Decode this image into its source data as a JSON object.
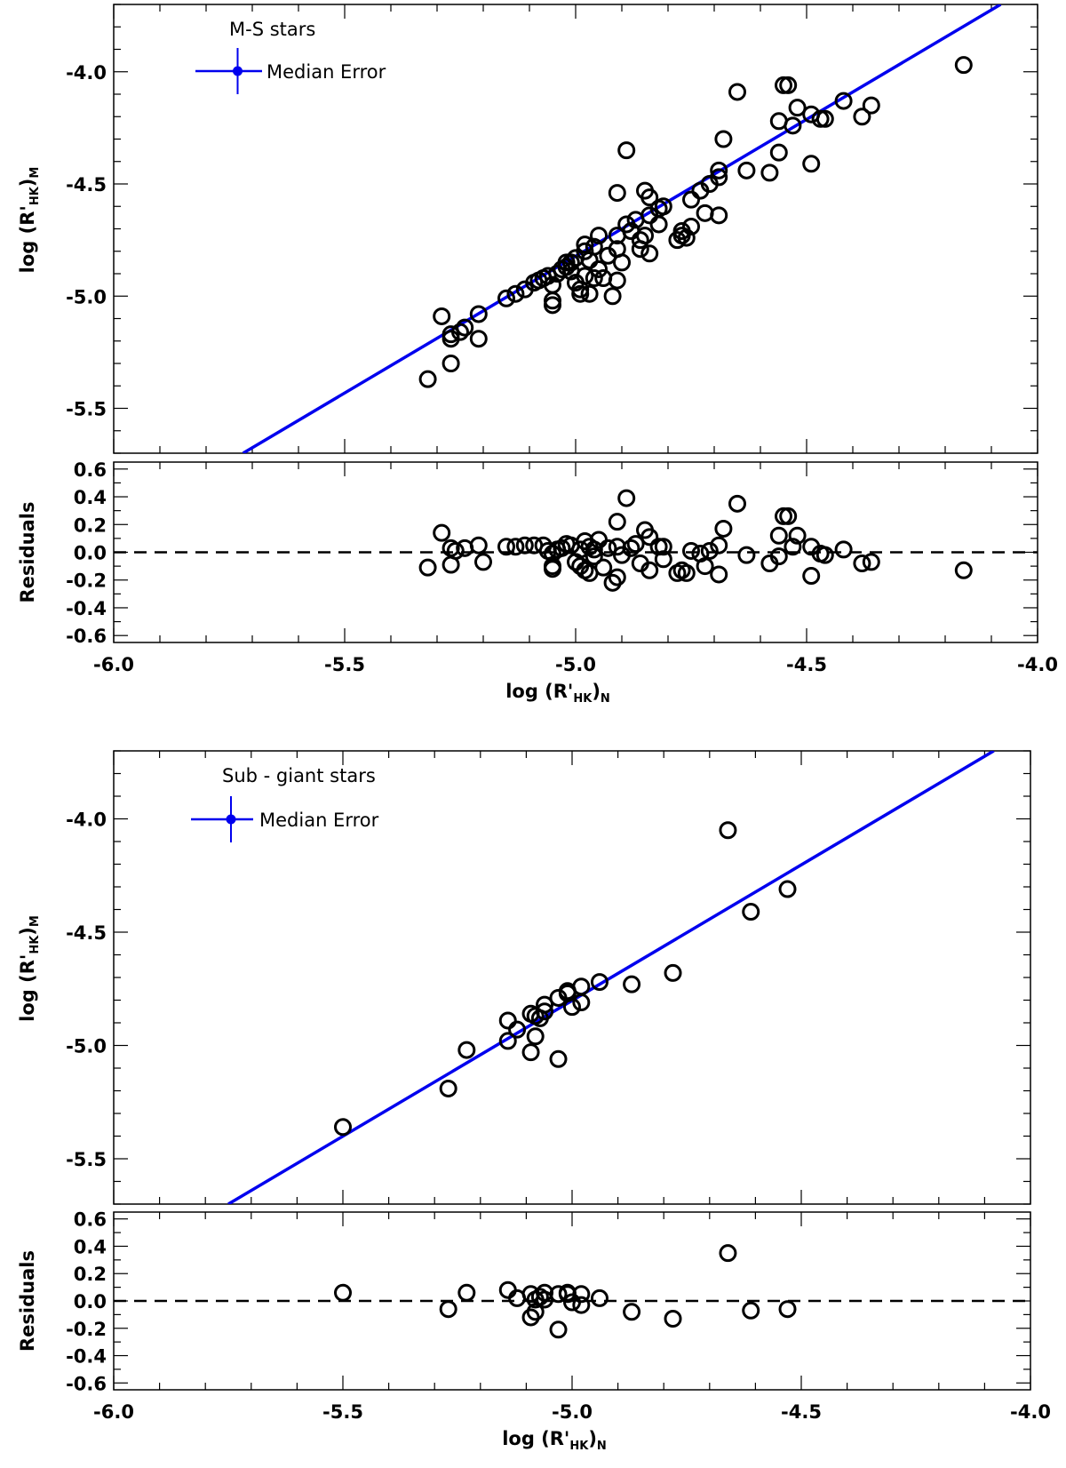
{
  "colors": {
    "fit_line": "#0000ee",
    "points": "#000000",
    "dashed_zero": "#000000",
    "frame": "#000000"
  },
  "chart_data": [
    {
      "type": "scatter",
      "panel": "main",
      "legend_title": "M-S stars",
      "legend_label": "Median Error",
      "legend_position": "top-left",
      "xlabel": "",
      "ylabel": "log (R'HK)M",
      "ylabel_main": "log (R'",
      "ylabel_sub1": "HK",
      "ylabel_close": ")",
      "ylabel_sub2": "M",
      "xlim": [
        -6.0,
        -4.0
      ],
      "ylim": [
        -5.7,
        -3.7
      ],
      "x_ticks": [
        -6.0,
        -5.5,
        -5.0,
        -4.5,
        -4.0
      ],
      "y_ticks": [
        -4.0,
        -4.5,
        -5.0,
        -5.5
      ],
      "y_tick_labels": [
        "-4.0",
        "-4.5",
        "-5.0",
        "-5.5"
      ],
      "fit_line": {
        "x": [
          -5.72,
          -4.08
        ],
        "y": [
          -5.7,
          -3.7
        ]
      },
      "points": [
        [
          -5.32,
          -5.37
        ],
        [
          -5.29,
          -5.09
        ],
        [
          -5.27,
          -5.17
        ],
        [
          -5.27,
          -5.19
        ],
        [
          -5.27,
          -5.3
        ],
        [
          -5.25,
          -5.16
        ],
        [
          -5.24,
          -5.14
        ],
        [
          -5.21,
          -5.08
        ],
        [
          -5.21,
          -5.19
        ],
        [
          -5.15,
          -5.01
        ],
        [
          -5.13,
          -4.99
        ],
        [
          -5.11,
          -4.97
        ],
        [
          -5.09,
          -4.94
        ],
        [
          -5.08,
          -4.93
        ],
        [
          -5.07,
          -4.92
        ],
        [
          -5.06,
          -4.91
        ],
        [
          -5.05,
          -4.95
        ],
        [
          -5.05,
          -5.02
        ],
        [
          -5.05,
          -5.04
        ],
        [
          -5.04,
          -4.9
        ],
        [
          -5.03,
          -4.88
        ],
        [
          -5.02,
          -4.85
        ],
        [
          -5.02,
          -4.87
        ],
        [
          -5.01,
          -4.85
        ],
        [
          -5.01,
          -4.89
        ],
        [
          -5.0,
          -4.83
        ],
        [
          -5.0,
          -4.94
        ],
        [
          -4.99,
          -4.97
        ],
        [
          -4.99,
          -4.99
        ],
        [
          -4.98,
          -4.77
        ],
        [
          -4.98,
          -4.8
        ],
        [
          -4.98,
          -4.91
        ],
        [
          -4.97,
          -4.84
        ],
        [
          -4.97,
          -4.99
        ],
        [
          -4.96,
          -4.78
        ],
        [
          -4.96,
          -4.92
        ],
        [
          -4.95,
          -4.73
        ],
        [
          -4.95,
          -4.88
        ],
        [
          -4.94,
          -4.92
        ],
        [
          -4.93,
          -4.82
        ],
        [
          -4.92,
          -5.0
        ],
        [
          -4.91,
          -4.54
        ],
        [
          -4.91,
          -4.73
        ],
        [
          -4.91,
          -4.93
        ],
        [
          -4.91,
          -4.79
        ],
        [
          -4.9,
          -4.85
        ],
        [
          -4.89,
          -4.35
        ],
        [
          -4.89,
          -4.68
        ],
        [
          -4.88,
          -4.71
        ],
        [
          -4.87,
          -4.66
        ],
        [
          -4.86,
          -4.75
        ],
        [
          -4.86,
          -4.79
        ],
        [
          -4.85,
          -4.53
        ],
        [
          -4.85,
          -4.73
        ],
        [
          -4.84,
          -4.56
        ],
        [
          -4.84,
          -4.64
        ],
        [
          -4.84,
          -4.81
        ],
        [
          -4.82,
          -4.61
        ],
        [
          -4.82,
          -4.68
        ],
        [
          -4.81,
          -4.6
        ],
        [
          -4.78,
          -4.75
        ],
        [
          -4.77,
          -4.71
        ],
        [
          -4.77,
          -4.73
        ],
        [
          -4.76,
          -4.74
        ],
        [
          -4.75,
          -4.57
        ],
        [
          -4.75,
          -4.69
        ],
        [
          -4.73,
          -4.53
        ],
        [
          -4.72,
          -4.63
        ],
        [
          -4.71,
          -4.5
        ],
        [
          -4.69,
          -4.44
        ],
        [
          -4.69,
          -4.47
        ],
        [
          -4.69,
          -4.64
        ],
        [
          -4.68,
          -4.3
        ],
        [
          -4.65,
          -4.09
        ],
        [
          -4.63,
          -4.44
        ],
        [
          -4.58,
          -4.45
        ],
        [
          -4.56,
          -4.22
        ],
        [
          -4.56,
          -4.36
        ],
        [
          -4.55,
          -4.06
        ],
        [
          -4.54,
          -4.06
        ],
        [
          -4.53,
          -4.24
        ],
        [
          -4.52,
          -4.16
        ],
        [
          -4.49,
          -4.19
        ],
        [
          -4.49,
          -4.41
        ],
        [
          -4.47,
          -4.21
        ],
        [
          -4.46,
          -4.21
        ],
        [
          -4.42,
          -4.13
        ],
        [
          -4.38,
          -4.2
        ],
        [
          -4.36,
          -4.15
        ],
        [
          -4.16,
          -3.97
        ]
      ]
    },
    {
      "type": "scatter",
      "panel": "residuals",
      "xlabel": "log (R'HK)N",
      "xlabel_main": "log (R'",
      "xlabel_sub1": "HK",
      "xlabel_close": ")",
      "xlabel_sub2": "N",
      "ylabel": "Residuals",
      "xlim": [
        -6.0,
        -4.0
      ],
      "ylim": [
        -0.65,
        0.65
      ],
      "x_ticks": [
        -6.0,
        -5.5,
        -5.0,
        -4.5,
        -4.0
      ],
      "x_tick_labels": [
        "-6.0",
        "-5.5",
        "-5.0",
        "-4.5",
        "-4.0"
      ],
      "y_ticks": [
        0.6,
        0.4,
        0.2,
        0.0,
        -0.2,
        -0.4,
        -0.6
      ],
      "y_tick_labels": [
        "0.6",
        "0.4",
        "0.2",
        "0.0",
        "-0.2",
        "-0.4",
        "-0.6"
      ],
      "zero_line": 0.0,
      "points": [
        [
          -5.32,
          -0.11
        ],
        [
          -5.29,
          0.14
        ],
        [
          -5.27,
          -0.09
        ],
        [
          -5.27,
          0.03
        ],
        [
          -5.26,
          0.01
        ],
        [
          -5.24,
          0.03
        ],
        [
          -5.21,
          0.05
        ],
        [
          -5.2,
          -0.07
        ],
        [
          -5.15,
          0.04
        ],
        [
          -5.13,
          0.04
        ],
        [
          -5.11,
          0.05
        ],
        [
          -5.09,
          0.05
        ],
        [
          -5.07,
          0.05
        ],
        [
          -5.06,
          0.01
        ],
        [
          -5.05,
          -0.01
        ],
        [
          -5.05,
          -0.1
        ],
        [
          -5.05,
          -0.12
        ],
        [
          -5.04,
          0.02
        ],
        [
          -5.03,
          0.03
        ],
        [
          -5.02,
          0.06
        ],
        [
          -5.01,
          0.05
        ],
        [
          -5.0,
          -0.07
        ],
        [
          -4.99,
          -0.1
        ],
        [
          -4.99,
          0.02
        ],
        [
          -4.98,
          0.08
        ],
        [
          -4.98,
          -0.13
        ],
        [
          -4.97,
          0.04
        ],
        [
          -4.97,
          -0.15
        ],
        [
          -4.96,
          -0.03
        ],
        [
          -4.96,
          0.02
        ],
        [
          -4.95,
          0.09
        ],
        [
          -4.94,
          -0.11
        ],
        [
          -4.93,
          0.03
        ],
        [
          -4.92,
          -0.22
        ],
        [
          -4.91,
          0.22
        ],
        [
          -4.91,
          -0.18
        ],
        [
          -4.91,
          0.04
        ],
        [
          -4.9,
          -0.02
        ],
        [
          -4.89,
          0.39
        ],
        [
          -4.88,
          0.03
        ],
        [
          -4.87,
          0.06
        ],
        [
          -4.86,
          -0.08
        ],
        [
          -4.85,
          0.16
        ],
        [
          -4.84,
          0.11
        ],
        [
          -4.84,
          -0.13
        ],
        [
          -4.82,
          0.04
        ],
        [
          -4.81,
          0.04
        ],
        [
          -4.81,
          -0.05
        ],
        [
          -4.78,
          -0.15
        ],
        [
          -4.77,
          -0.13
        ],
        [
          -4.76,
          -0.15
        ],
        [
          -4.75,
          0.01
        ],
        [
          -4.73,
          -0.01
        ],
        [
          -4.72,
          -0.1
        ],
        [
          -4.71,
          0.01
        ],
        [
          -4.69,
          0.05
        ],
        [
          -4.69,
          -0.16
        ],
        [
          -4.68,
          0.17
        ],
        [
          -4.65,
          0.35
        ],
        [
          -4.63,
          -0.02
        ],
        [
          -4.58,
          -0.08
        ],
        [
          -4.56,
          0.12
        ],
        [
          -4.56,
          -0.03
        ],
        [
          -4.55,
          0.26
        ],
        [
          -4.54,
          0.26
        ],
        [
          -4.53,
          0.04
        ],
        [
          -4.52,
          0.12
        ],
        [
          -4.49,
          -0.17
        ],
        [
          -4.49,
          0.04
        ],
        [
          -4.47,
          -0.01
        ],
        [
          -4.46,
          -0.02
        ],
        [
          -4.42,
          0.02
        ],
        [
          -4.38,
          -0.08
        ],
        [
          -4.36,
          -0.07
        ],
        [
          -4.16,
          -0.13
        ]
      ]
    },
    {
      "type": "scatter",
      "panel": "main",
      "legend_title": "Sub - giant stars",
      "legend_label": "Median Error",
      "legend_position": "top-left",
      "xlabel": "",
      "ylabel": "log (R'HK)M",
      "ylabel_main": "log (R'",
      "ylabel_sub1": "HK",
      "ylabel_close": ")",
      "ylabel_sub2": "M",
      "xlim": [
        -6.0,
        -4.0
      ],
      "ylim": [
        -5.7,
        -3.7
      ],
      "x_ticks": [
        -6.0,
        -5.5,
        -5.0,
        -4.5,
        -4.0
      ],
      "y_ticks": [
        -4.0,
        -4.5,
        -5.0,
        -5.5
      ],
      "y_tick_labels": [
        "-4.0",
        "-4.5",
        "-5.0",
        "-5.5"
      ],
      "fit_line": {
        "x": [
          -5.75,
          -4.08
        ],
        "y": [
          -5.7,
          -3.7
        ]
      },
      "points": [
        [
          -5.5,
          -5.36
        ],
        [
          -5.27,
          -5.19
        ],
        [
          -5.23,
          -5.02
        ],
        [
          -5.14,
          -4.89
        ],
        [
          -5.14,
          -4.98
        ],
        [
          -5.12,
          -4.93
        ],
        [
          -5.09,
          -4.86
        ],
        [
          -5.09,
          -5.03
        ],
        [
          -5.08,
          -4.87
        ],
        [
          -5.08,
          -4.96
        ],
        [
          -5.07,
          -4.88
        ],
        [
          -5.06,
          -4.85
        ],
        [
          -5.06,
          -4.82
        ],
        [
          -5.03,
          -4.79
        ],
        [
          -5.03,
          -5.06
        ],
        [
          -5.01,
          -4.77
        ],
        [
          -5.01,
          -4.76
        ],
        [
          -5.0,
          -4.83
        ],
        [
          -4.98,
          -4.81
        ],
        [
          -4.98,
          -4.74
        ],
        [
          -4.94,
          -4.72
        ],
        [
          -4.87,
          -4.73
        ],
        [
          -4.78,
          -4.68
        ],
        [
          -4.66,
          -4.05
        ],
        [
          -4.61,
          -4.41
        ],
        [
          -4.53,
          -4.31
        ]
      ]
    },
    {
      "type": "scatter",
      "panel": "residuals",
      "xlabel": "log (R'HK)N",
      "xlabel_main": "log (R'",
      "xlabel_sub1": "HK",
      "xlabel_close": ")",
      "xlabel_sub2": "N",
      "ylabel": "Residuals",
      "xlim": [
        -6.0,
        -4.0
      ],
      "ylim": [
        -0.65,
        0.65
      ],
      "x_ticks": [
        -6.0,
        -5.5,
        -5.0,
        -4.5,
        -4.0
      ],
      "x_tick_labels": [
        "-6.0",
        "-5.5",
        "-5.0",
        "-4.5",
        "-4.0"
      ],
      "y_ticks": [
        0.6,
        0.4,
        0.2,
        0.0,
        -0.2,
        -0.4,
        -0.6
      ],
      "y_tick_labels": [
        "0.6",
        "0.4",
        "0.2",
        "0.0",
        "-0.2",
        "-0.4",
        "-0.6"
      ],
      "zero_line": 0.0,
      "points": [
        [
          -5.5,
          0.06
        ],
        [
          -5.27,
          -0.06
        ],
        [
          -5.23,
          0.06
        ],
        [
          -5.14,
          0.08
        ],
        [
          -5.12,
          0.02
        ],
        [
          -5.09,
          -0.12
        ],
        [
          -5.09,
          0.05
        ],
        [
          -5.08,
          -0.08
        ],
        [
          -5.08,
          0.01
        ],
        [
          -5.07,
          0.03
        ],
        [
          -5.06,
          0.06
        ],
        [
          -5.06,
          0.01
        ],
        [
          -5.03,
          0.05
        ],
        [
          -5.03,
          -0.21
        ],
        [
          -5.01,
          0.06
        ],
        [
          -5.01,
          0.05
        ],
        [
          -5.0,
          -0.01
        ],
        [
          -4.98,
          0.05
        ],
        [
          -4.98,
          -0.03
        ],
        [
          -4.94,
          0.02
        ],
        [
          -4.87,
          -0.08
        ],
        [
          -4.78,
          -0.13
        ],
        [
          -4.66,
          0.35
        ],
        [
          -4.61,
          -0.07
        ],
        [
          -4.53,
          -0.06
        ]
      ]
    }
  ]
}
